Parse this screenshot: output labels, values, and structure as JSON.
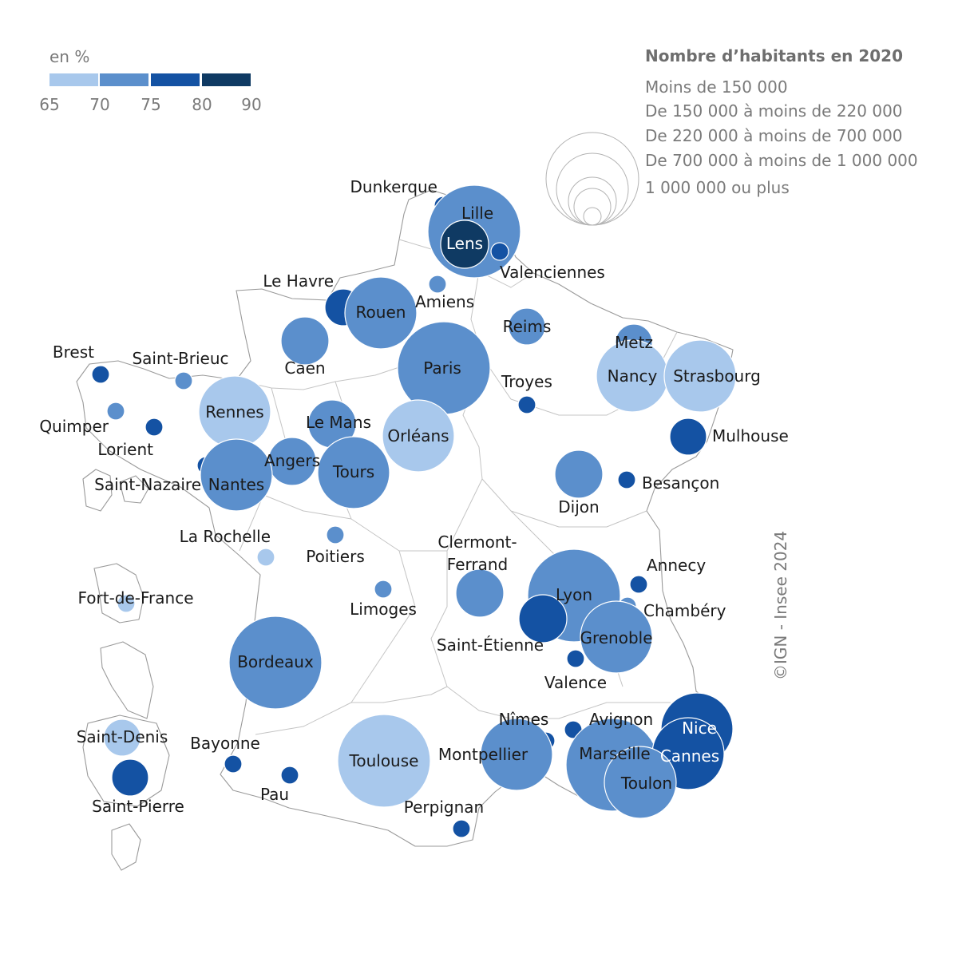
{
  "color_legend": {
    "title": "en %",
    "ticks": [
      "65",
      "70",
      "75",
      "80",
      "90"
    ],
    "classes": [
      {
        "from": 65,
        "to": 70,
        "color": "#a8c8ec"
      },
      {
        "from": 70,
        "to": 75,
        "color": "#5b8fcc"
      },
      {
        "from": 75,
        "to": 80,
        "color": "#1452a3"
      },
      {
        "from": 80,
        "to": 90,
        "color": "#0f3a63"
      }
    ]
  },
  "size_legend": {
    "title": "Nombre d’habitants en 2020",
    "items": [
      {
        "label": "Moins de 150 000",
        "size_class": 1
      },
      {
        "label": "De 150 000 à moins de 220 000",
        "size_class": 2
      },
      {
        "label": "De 220 000 à moins de 700 000",
        "size_class": 3
      },
      {
        "label": "De 700 000 à moins de 1 000 000",
        "size_class": 4
      },
      {
        "label": "1 000 000 ou plus",
        "size_class": 5
      }
    ]
  },
  "credit": "©IGN - Insee 2024",
  "cities": [
    {
      "name": "Dunkerque",
      "size_class": 1,
      "color_class": 3
    },
    {
      "name": "Lille",
      "size_class": 5,
      "color_class": 2
    },
    {
      "name": "Lens",
      "size_class": 3,
      "color_class": 4
    },
    {
      "name": "Valenciennes",
      "size_class": 1,
      "color_class": 3
    },
    {
      "name": "Amiens",
      "size_class": 1,
      "color_class": 2
    },
    {
      "name": "Le Havre",
      "size_class": 2,
      "color_class": 3
    },
    {
      "name": "Rouen",
      "size_class": 4,
      "color_class": 2
    },
    {
      "name": "Reims",
      "size_class": 2,
      "color_class": 2
    },
    {
      "name": "Caen",
      "size_class": 3,
      "color_class": 2
    },
    {
      "name": "Paris",
      "size_class": 5,
      "color_class": 2
    },
    {
      "name": "Metz",
      "size_class": 2,
      "color_class": 2
    },
    {
      "name": "Nancy",
      "size_class": 4,
      "color_class": 1
    },
    {
      "name": "Strasbourg",
      "size_class": 4,
      "color_class": 1
    },
    {
      "name": "Brest",
      "size_class": 1,
      "color_class": 3
    },
    {
      "name": "Saint-Brieuc",
      "size_class": 1,
      "color_class": 2
    },
    {
      "name": "Troyes",
      "size_class": 1,
      "color_class": 3
    },
    {
      "name": "Rennes",
      "size_class": 4,
      "color_class": 1
    },
    {
      "name": "Quimper",
      "size_class": 1,
      "color_class": 2
    },
    {
      "name": "Lorient",
      "size_class": 1,
      "color_class": 3
    },
    {
      "name": "Le Mans",
      "size_class": 3,
      "color_class": 2
    },
    {
      "name": "Orléans",
      "size_class": 4,
      "color_class": 1
    },
    {
      "name": "Mulhouse",
      "size_class": 2,
      "color_class": 3
    },
    {
      "name": "Saint-Nazaire",
      "size_class": 1,
      "color_class": 3
    },
    {
      "name": "Angers",
      "size_class": 3,
      "color_class": 2
    },
    {
      "name": "Nantes",
      "size_class": 4,
      "color_class": 2
    },
    {
      "name": "Tours",
      "size_class": 4,
      "color_class": 2
    },
    {
      "name": "Dijon",
      "size_class": 3,
      "color_class": 2
    },
    {
      "name": "Besançon",
      "size_class": 1,
      "color_class": 3
    },
    {
      "name": "La Rochelle",
      "size_class": 1,
      "color_class": 1
    },
    {
      "name": "Poitiers",
      "size_class": 1,
      "color_class": 2
    },
    {
      "name": "Clermont-Ferrand",
      "size_class": 3,
      "color_class": 2
    },
    {
      "name": "Annecy",
      "size_class": 1,
      "color_class": 3
    },
    {
      "name": "Lyon",
      "size_class": 5,
      "color_class": 2
    },
    {
      "name": "Fort-de-France",
      "size_class": 1,
      "color_class": 1
    },
    {
      "name": "Limoges",
      "size_class": 1,
      "color_class": 2
    },
    {
      "name": "Chambéry",
      "size_class": 1,
      "color_class": 2
    },
    {
      "name": "Saint-Étienne",
      "size_class": 3,
      "color_class": 3
    },
    {
      "name": "Grenoble",
      "size_class": 4,
      "color_class": 2
    },
    {
      "name": "Valence",
      "size_class": 1,
      "color_class": 3
    },
    {
      "name": "Bordeaux",
      "size_class": 5,
      "color_class": 2
    },
    {
      "name": "Nice",
      "size_class": 4,
      "color_class": 3
    },
    {
      "name": "Nîmes",
      "size_class": 1,
      "color_class": 3
    },
    {
      "name": "Avignon",
      "size_class": 1,
      "color_class": 3
    },
    {
      "name": "Saint-Denis",
      "size_class": 2,
      "color_class": 1
    },
    {
      "name": "Bayonne",
      "size_class": 1,
      "color_class": 3
    },
    {
      "name": "Toulouse",
      "size_class": 5,
      "color_class": 1
    },
    {
      "name": "Montpellier",
      "size_class": 4,
      "color_class": 2
    },
    {
      "name": "Marseille",
      "size_class": 5,
      "color_class": 2
    },
    {
      "name": "Cannes",
      "size_class": 4,
      "color_class": 3
    },
    {
      "name": "Saint-Pierre",
      "size_class": 2,
      "color_class": 3
    },
    {
      "name": "Pau",
      "size_class": 1,
      "color_class": 3
    },
    {
      "name": "Toulon",
      "size_class": 4,
      "color_class": 2
    },
    {
      "name": "Perpignan",
      "size_class": 1,
      "color_class": 3
    }
  ]
}
